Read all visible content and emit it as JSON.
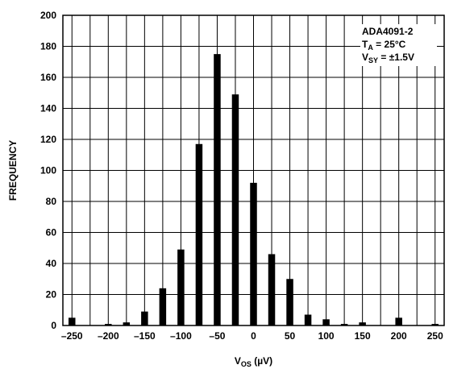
{
  "chart_data": {
    "type": "bar",
    "title": "",
    "xlabel": "V",
    "xlabel_subscript": "OS",
    "xlabel_unit": " (µV)",
    "ylabel": "FREQUENCY",
    "xlim": [
      -262.5,
      262.5
    ],
    "ylim": [
      0,
      200
    ],
    "x_ticks": [
      -250,
      -200,
      -150,
      -100,
      -50,
      0,
      50,
      100,
      150,
      200,
      250
    ],
    "x_tick_labels": [
      "–250",
      "–200",
      "–150",
      "–100",
      "–50",
      "0",
      "50",
      "100",
      "150",
      "200",
      "250"
    ],
    "y_ticks": [
      0,
      20,
      40,
      60,
      80,
      100,
      120,
      140,
      160,
      180,
      200
    ],
    "y_tick_labels": [
      "0",
      "20",
      "40",
      "60",
      "80",
      "100",
      "120",
      "140",
      "160",
      "180",
      "200"
    ],
    "grid": true,
    "bar_color": "#000000",
    "x": [
      -250,
      -225,
      -200,
      -175,
      -150,
      -125,
      -100,
      -75,
      -50,
      -25,
      0,
      25,
      50,
      75,
      100,
      125,
      150,
      175,
      200,
      225,
      250
    ],
    "values": [
      5,
      0,
      1,
      2,
      9,
      24,
      49,
      117,
      175,
      149,
      92,
      46,
      30,
      7,
      4,
      1,
      2,
      0,
      5,
      0,
      1
    ],
    "annotation": {
      "line1": "ADA4091-2",
      "line2_main": "T",
      "line2_sub": "A",
      "line2_rest": " = 25°C",
      "line3_main": "V",
      "line3_sub": "SY",
      "line3_rest": " = ±1.5V",
      "placement": "top-right"
    }
  }
}
